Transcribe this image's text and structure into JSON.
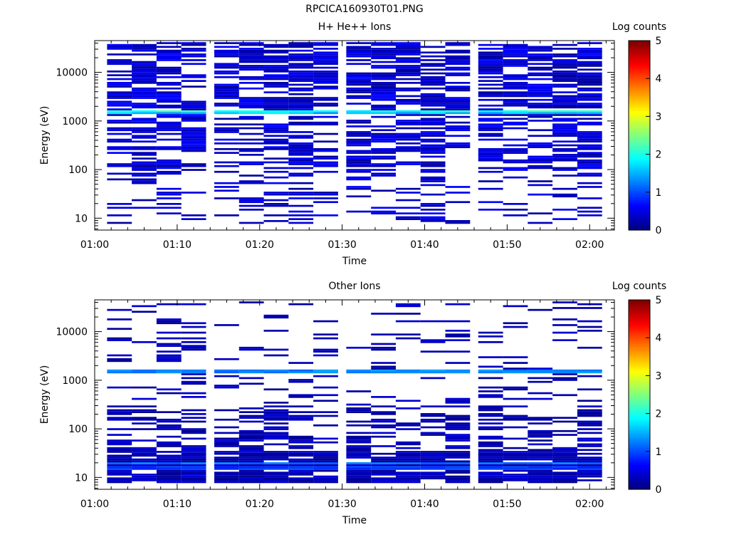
{
  "page_title": "RPCICA160930T01.PNG",
  "chart_data": [
    {
      "type": "heatmap",
      "title": "H+ He++ Ions",
      "xlabel": "Time",
      "ylabel": "Energy (eV)",
      "x_ticks": [
        "01:00",
        "01:10",
        "01:20",
        "01:30",
        "01:40",
        "01:50",
        "02:00"
      ],
      "x_range": [
        "01:00",
        "02:03"
      ],
      "y_scale": "log",
      "y_range": [
        5.7,
        45000
      ],
      "y_ticks": [
        10,
        100,
        1000,
        10000
      ],
      "y_tick_labels": [
        "10",
        "100",
        "1000",
        "10000"
      ],
      "colorbar": {
        "label": "Log counts",
        "range": [
          0,
          5
        ],
        "ticks": [
          "0",
          "1",
          "2",
          "3",
          "4",
          "5"
        ]
      },
      "grid": false,
      "column_times": [
        "01:03",
        "01:06",
        "01:09",
        "01:12",
        "01:16",
        "01:19",
        "01:22",
        "01:25",
        "01:28",
        "01:32",
        "01:35",
        "01:38",
        "01:41",
        "01:44",
        "01:48",
        "01:51",
        "01:54",
        "01:57",
        "02:00"
      ],
      "energy_channels": {
        "min_ev": 8,
        "max_ev": 40000,
        "count": 96
      },
      "notable_features": [
        {
          "energy_ev": 1600,
          "log_counts": 2.0
        },
        {
          "energy_ev": 1450,
          "log_counts": 1.6
        }
      ],
      "typical_log_counts": 0.3
    },
    {
      "type": "heatmap",
      "title": "Other Ions",
      "xlabel": "Time",
      "ylabel": "Energy (eV)",
      "x_ticks": [
        "01:00",
        "01:10",
        "01:20",
        "01:30",
        "01:40",
        "01:50",
        "02:00"
      ],
      "x_range": [
        "01:00",
        "02:03"
      ],
      "y_scale": "log",
      "y_range": [
        5.7,
        45000
      ],
      "y_ticks": [
        10,
        100,
        1000,
        10000
      ],
      "y_tick_labels": [
        "10",
        "100",
        "1000",
        "10000"
      ],
      "colorbar": {
        "label": "Log counts",
        "range": [
          0,
          5
        ],
        "ticks": [
          "0",
          "1",
          "2",
          "3",
          "4",
          "5"
        ]
      },
      "grid": false,
      "column_times": [
        "01:03",
        "01:06",
        "01:09",
        "01:12",
        "01:16",
        "01:19",
        "01:22",
        "01:25",
        "01:28",
        "01:32",
        "01:35",
        "01:38",
        "01:41",
        "01:44",
        "01:48",
        "01:51",
        "01:54",
        "01:57",
        "02:00"
      ],
      "energy_channels": {
        "min_ev": 8,
        "max_ev": 40000,
        "count": 96
      },
      "notable_features": [
        {
          "energy_ev": 1550,
          "log_counts": 1.3
        },
        {
          "energy_ev": 20,
          "log_counts": 1.2
        },
        {
          "energy_ev": 16,
          "log_counts": 0.9
        }
      ],
      "typical_log_counts": 0.2
    }
  ]
}
